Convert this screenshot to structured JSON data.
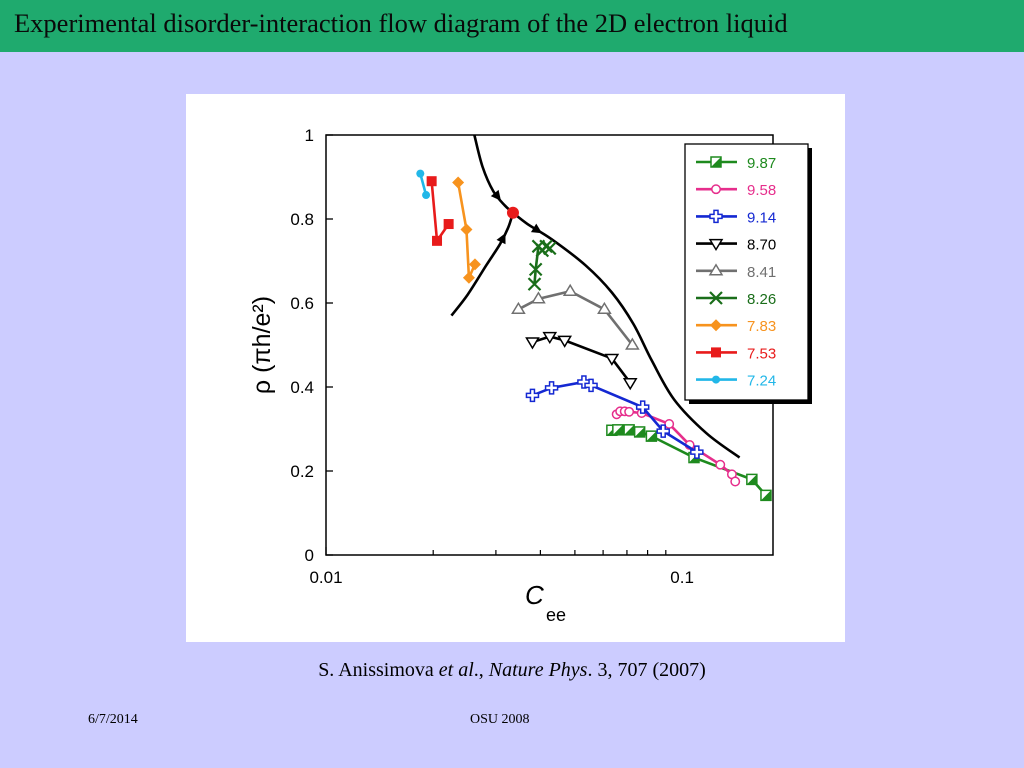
{
  "slide": {
    "title": "Experimental disorder-interaction flow diagram of the 2D electron liquid",
    "citation": {
      "authors": "S. Anissimova ",
      "etal": "et al",
      "sep": "., ",
      "journal": "Nature Phys",
      "rest": ". 3, 707 (2007)"
    },
    "footer_date": "6/7/2014",
    "footer_venue": "OSU 2008"
  },
  "chart_data": {
    "type": "scatter",
    "x_scale": "log",
    "xlim": [
      0.01,
      0.18
    ],
    "ylim": [
      0,
      1
    ],
    "xlabel": "C",
    "xlabel_sub": "ee",
    "ylabel": "ρ  (πh/e²)",
    "x_ticks": [
      {
        "value": 0.01,
        "label": "0.01"
      },
      {
        "value": 0.1,
        "label": "0.1"
      }
    ],
    "y_ticks": [
      {
        "value": 0,
        "label": "0"
      },
      {
        "value": 0.2,
        "label": "0.2"
      },
      {
        "value": 0.4,
        "label": "0.4"
      },
      {
        "value": 0.6,
        "label": "0.6"
      },
      {
        "value": 0.8,
        "label": "0.8"
      },
      {
        "value": 1,
        "label": "1"
      }
    ],
    "legend_position": "top-right",
    "series": [
      {
        "name": "9.87",
        "color": "#1e8a1e",
        "marker": "half-square",
        "x": [
          0.0635,
          0.066,
          0.071,
          0.076,
          0.082,
          0.108,
          0.157,
          0.172
        ],
        "y": [
          0.297,
          0.298,
          0.298,
          0.293,
          0.283,
          0.232,
          0.18,
          0.142
        ]
      },
      {
        "name": "9.58",
        "color": "#e62e8c",
        "marker": "circle",
        "x": [
          0.0655,
          0.067,
          0.069,
          0.071,
          0.077,
          0.092,
          0.105,
          0.128,
          0.138,
          0.141
        ],
        "y": [
          0.335,
          0.342,
          0.342,
          0.341,
          0.338,
          0.312,
          0.262,
          0.215,
          0.192,
          0.175
        ]
      },
      {
        "name": "9.14",
        "color": "#1428d2",
        "marker": "plus",
        "x": [
          0.038,
          0.043,
          0.053,
          0.0555,
          0.0775,
          0.0885,
          0.11
        ],
        "y": [
          0.38,
          0.398,
          0.412,
          0.404,
          0.352,
          0.295,
          0.245
        ]
      },
      {
        "name": "8.70",
        "color": "#000000",
        "marker": "triangle-down",
        "x": [
          0.038,
          0.0425,
          0.0468,
          0.0635,
          0.0715
        ],
        "y": [
          0.507,
          0.52,
          0.511,
          0.468,
          0.41
        ]
      },
      {
        "name": "8.41",
        "color": "#707070",
        "marker": "triangle-up",
        "x": [
          0.0347,
          0.0395,
          0.0485,
          0.0605,
          0.0725
        ],
        "y": [
          0.585,
          0.61,
          0.628,
          0.585,
          0.5
        ]
      },
      {
        "name": "8.26",
        "color": "#1a6e1a",
        "marker": "x",
        "x": [
          0.0385,
          0.0388,
          0.0395,
          0.0405,
          0.0415,
          0.0425
        ],
        "y": [
          0.645,
          0.68,
          0.735,
          0.725,
          0.735,
          0.73
        ]
      },
      {
        "name": "7.83",
        "color": "#f7931e",
        "marker": "diamond",
        "x": [
          0.0235,
          0.0248,
          0.0252,
          0.0262
        ],
        "y": [
          0.887,
          0.775,
          0.66,
          0.692
        ]
      },
      {
        "name": "7.53",
        "color": "#e81b1b",
        "marker": "square",
        "x": [
          0.0198,
          0.0205,
          0.0221
        ],
        "y": [
          0.89,
          0.748,
          0.788
        ]
      },
      {
        "name": "7.24",
        "color": "#22b7e8",
        "marker": "dot",
        "x": [
          0.0184,
          0.0191
        ],
        "y": [
          0.908,
          0.857
        ]
      }
    ],
    "flow_lines": {
      "separatrix_upper": {
        "x": [
          0.0261,
          0.0275,
          0.0295,
          0.0318,
          0.0335
        ],
        "y": [
          1.0,
          0.925,
          0.866,
          0.832,
          0.815
        ]
      },
      "separatrix_lower": {
        "x": [
          0.0335,
          0.0368,
          0.043,
          0.0535,
          0.0635,
          0.073,
          0.0822,
          0.095,
          0.117,
          0.145
        ],
        "y": [
          0.815,
          0.788,
          0.752,
          0.69,
          0.625,
          0.55,
          0.463,
          0.37,
          0.29,
          0.232
        ]
      },
      "flow_in": {
        "x": [
          0.0225,
          0.025,
          0.0282,
          0.0308,
          0.0325,
          0.0335
        ],
        "y": [
          0.57,
          0.62,
          0.69,
          0.74,
          0.78,
          0.815
        ]
      },
      "critical_point": {
        "x": 0.0335,
        "y": 0.815,
        "color": "#e81b1b"
      }
    }
  }
}
